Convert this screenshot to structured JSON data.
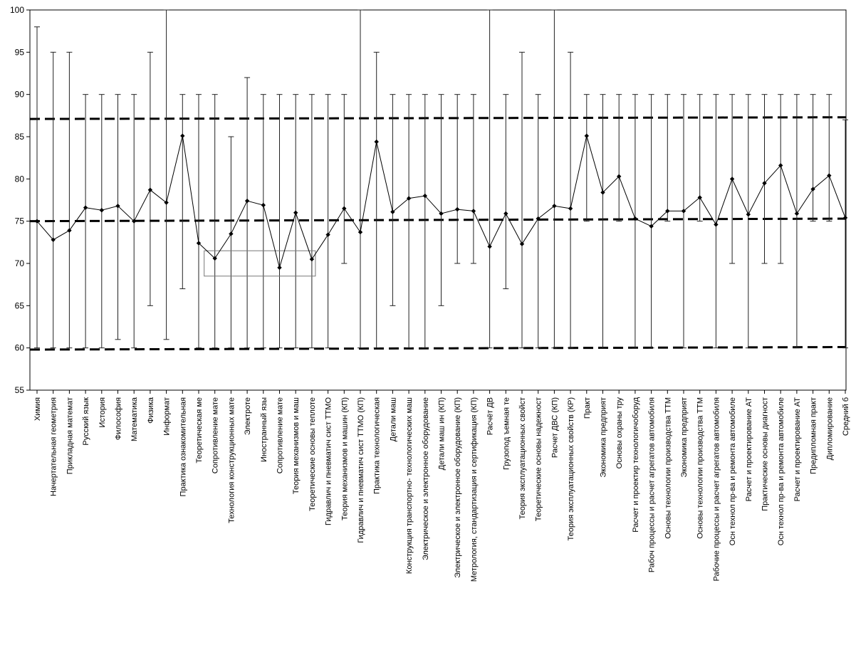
{
  "chart_data": {
    "type": "line",
    "title": "",
    "xlabel": "",
    "ylabel": "",
    "ylim": [
      55,
      100
    ],
    "yticks": [
      55,
      60,
      65,
      70,
      75,
      80,
      85,
      90,
      95,
      100
    ],
    "grid": false,
    "legend": "none",
    "categories": [
      "Химия",
      "Начертательная геометрия",
      "Прикладная математ",
      "Русский язык",
      "История",
      "Философия",
      "Математика",
      "Физика",
      "Информат",
      "Практика ознакомительная",
      "Теоретическая ме",
      "Сопротивление мате",
      "Технология конструкционных мате",
      "Электроте",
      "Иностранный язы",
      "Сопротивление мате",
      "Теория механизмов и маш",
      "Теоретические основы теплоте",
      "Гидравлич и пневматич сист ТТМО",
      "Теория механизмов и машин (КП)",
      "Гидравлич и пневматич сист ТТМО (КП)",
      "Практика технологическая",
      "Детали маш",
      "Конструкция транспортно- технологических маш",
      "Электрическое и электронное оборудование",
      "Детали маш ин (КП)",
      "Электрическое и электронное оборудование (КП)",
      "Метрология, стандартизация и сертификация (КП)",
      "Расчёт ДВ",
      "Грузопод ъемная те",
      "Теория эксплуатационных свойст",
      "Теоретические основы надежност",
      "Расчет ДВС (КП)",
      "Теория эксплуатационных свойств (КР)",
      "Практ",
      "Экономика предприят",
      "Основы охраны тру",
      "Расчет и проектир технологичоборуд",
      "Рабоч процессы и расчет агрегатов автомобиля",
      "Основы технологии производства ТТМ",
      "Экономика предприят",
      "Основы технологии производства ТТМ",
      "Рабочие процессы и расчет агрегатов автомобиля",
      "Осн технол пр-ва и ремонта автомобиле",
      "Расчет и проектирование АТ",
      "Практические основы диагност",
      "Осн технол пр-ва и ремонта автомобиле",
      "Расчет и проектирование АТ",
      "Предипломная практ",
      "Дипломирование",
      "Средний б"
    ],
    "series": [
      {
        "name": "",
        "color": "#000000",
        "values": [
          75.0,
          72.8,
          73.9,
          76.6,
          76.3,
          76.8,
          75.0,
          78.7,
          77.2,
          85.1,
          72.4,
          70.6,
          73.5,
          77.4,
          76.9,
          69.5,
          76.0,
          70.5,
          73.4,
          76.5,
          73.7,
          84.4,
          76.1,
          77.7,
          78.0,
          75.9,
          76.4,
          76.2,
          72.0,
          75.9,
          72.3,
          75.3,
          76.8,
          76.5,
          85.1,
          78.4,
          80.3,
          75.3,
          74.4,
          76.2,
          76.2,
          77.8,
          74.6,
          80.0,
          75.8,
          79.5,
          81.6,
          75.9,
          78.8,
          80.4,
          75.4
        ],
        "min": [
          60,
          60,
          60,
          60,
          60,
          61,
          60,
          65,
          61,
          67,
          60,
          60,
          60,
          60,
          60,
          60,
          60,
          60,
          60,
          70,
          60,
          60,
          65,
          60,
          60,
          65,
          70,
          70,
          60,
          67,
          60,
          60,
          60,
          60,
          75,
          60,
          75,
          60,
          60,
          75,
          60,
          75,
          60,
          70,
          60,
          70,
          70,
          60,
          75,
          75,
          60
        ],
        "max": [
          98,
          95,
          95,
          90,
          90,
          90,
          90,
          95,
          100,
          90,
          90,
          90,
          85,
          92,
          90,
          90,
          90,
          90,
          90,
          90,
          100,
          95,
          90,
          90,
          90,
          90,
          90,
          90,
          100,
          90,
          95,
          90,
          100,
          95,
          90,
          90,
          90,
          90,
          90,
          90,
          90,
          90,
          90,
          90,
          90,
          90,
          90,
          90,
          90,
          90,
          87
        ]
      }
    ],
    "reference_lines": [
      {
        "y_start": 87.1,
        "y_end": 87.3
      },
      {
        "y_start": 75.0,
        "y_end": 75.3
      },
      {
        "y_start": 59.8,
        "y_end": 60.1
      }
    ],
    "highlight_box": {
      "x_start": 11,
      "x_end": 17,
      "y_low": 68.5,
      "y_high": 71.5
    }
  }
}
